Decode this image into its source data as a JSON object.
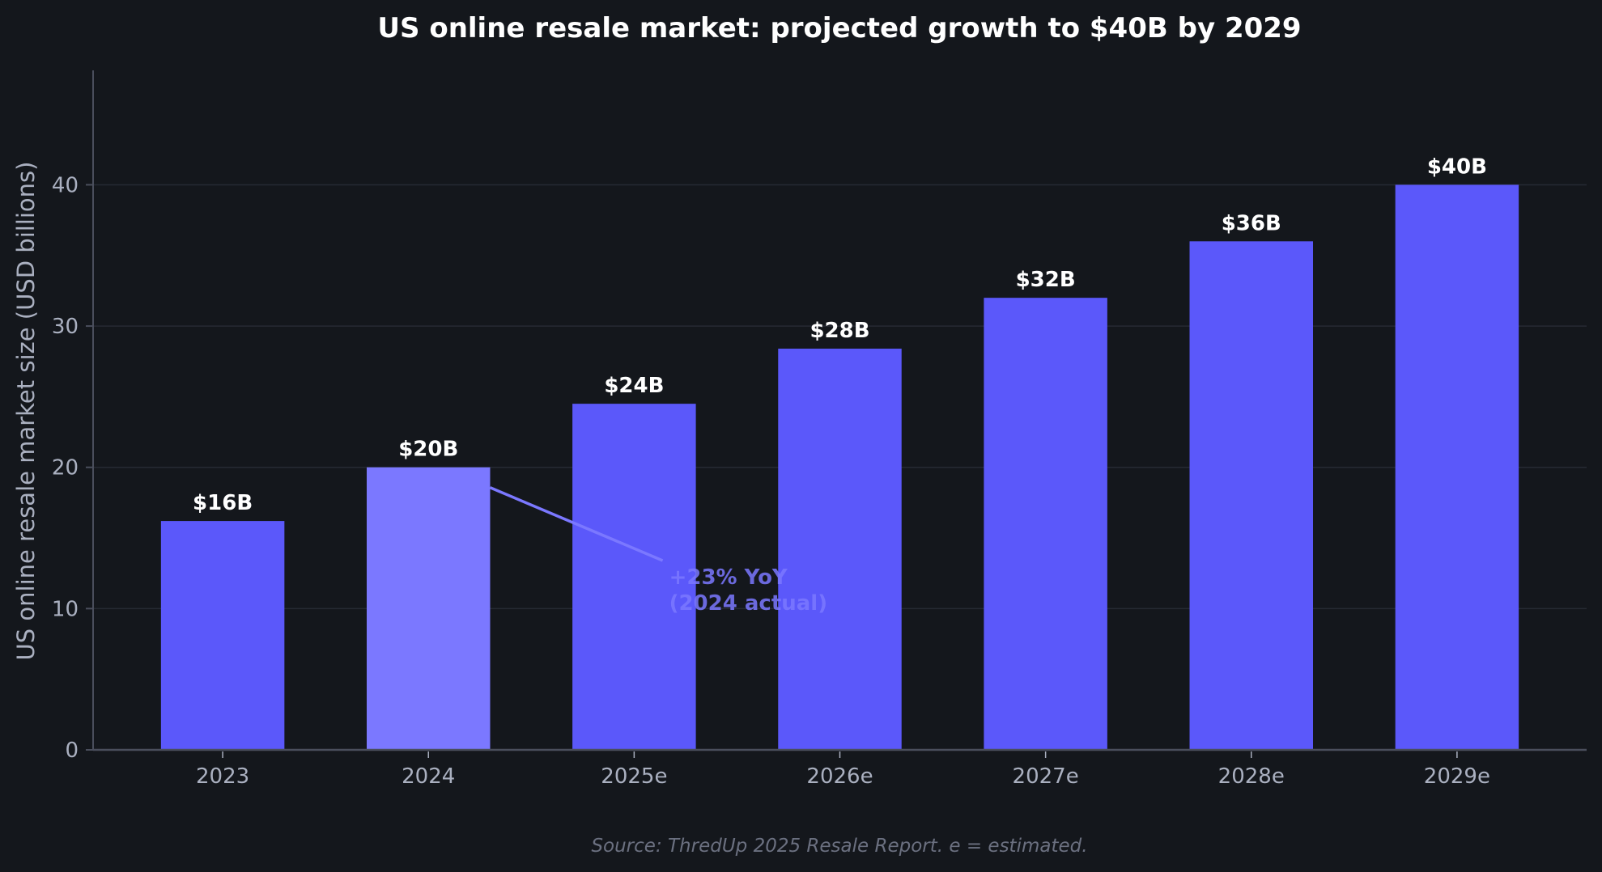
{
  "chart_data": {
    "type": "bar",
    "title": "US online resale market: projected growth to $40B by 2029",
    "xlabel": "",
    "ylabel": "US online resale market size (USD billions)",
    "categories": [
      "2023",
      "2024",
      "2025e",
      "2026e",
      "2027e",
      "2028e",
      "2029e"
    ],
    "values": [
      16.2,
      20.0,
      24.5,
      28.4,
      32.0,
      36.0,
      40.0
    ],
    "data_labels": [
      "$16B",
      "$20B",
      "$24B",
      "$28B",
      "$32B",
      "$36B",
      "$40B"
    ],
    "highlight_index": 1,
    "ylim": [
      0,
      48
    ],
    "yticks": [
      0,
      10,
      20,
      30,
      40
    ],
    "grid": "horizontal",
    "legend": "none",
    "annotation": {
      "lines": [
        "+23% YoY",
        "(2024 actual)"
      ],
      "points_to": "2024"
    },
    "footnote": "Source: ThredUp 2025 Resale Report. e = estimated.",
    "colors": {
      "background": "#14171c",
      "bar": "#5b58fa",
      "bar_highlight": "#7b78ff",
      "grid": "#262a33",
      "axis": "#4a4e5c",
      "tick_text": "#aab0c0",
      "annotation": "#7b78ff"
    }
  }
}
